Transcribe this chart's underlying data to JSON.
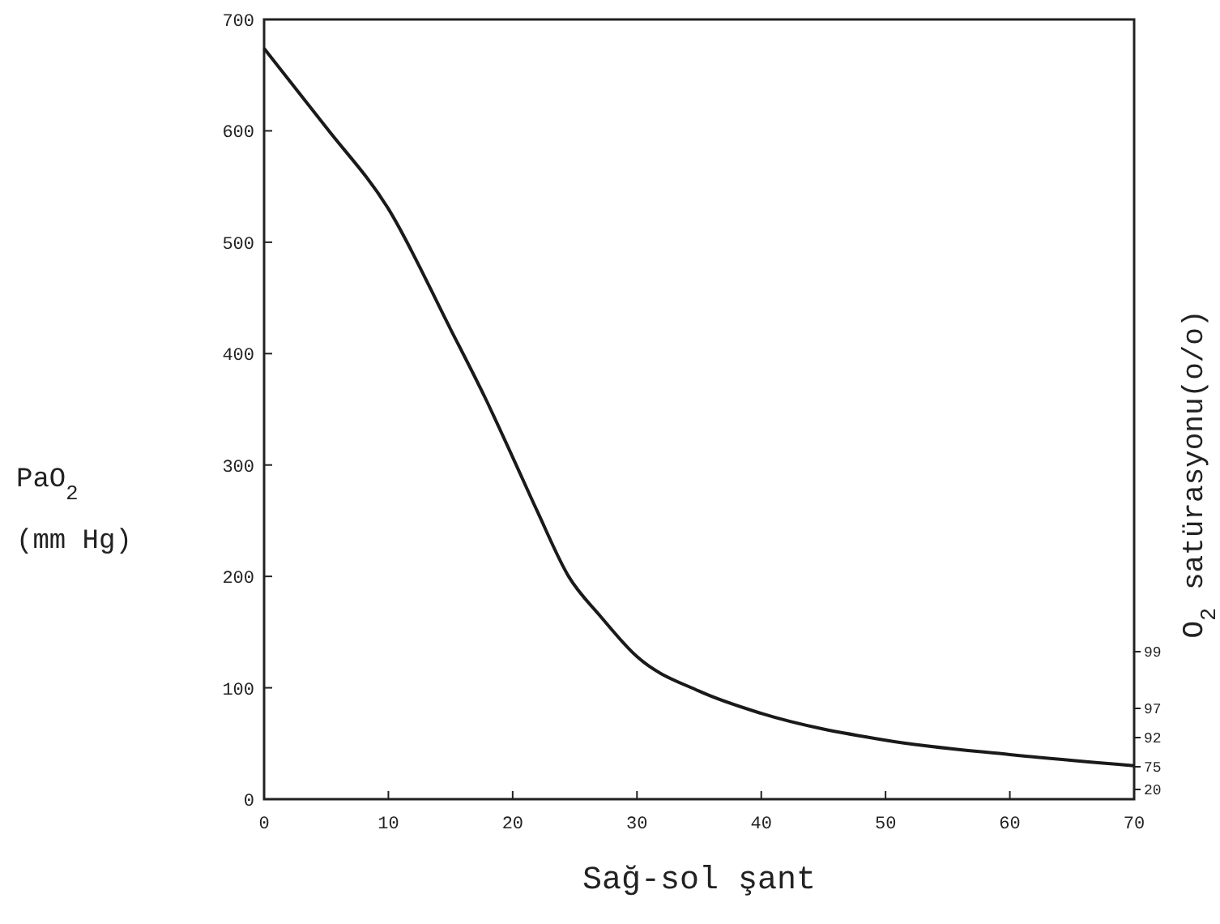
{
  "chart_data": {
    "type": "line",
    "xlabel": "Sağ-sol şant",
    "ylabel": "PaO$_{2}$ (mm Hg)",
    "y2label": "O$_{2}$ satürasyonu(o/o)",
    "x": [
      0,
      5,
      10,
      15,
      17.8,
      20,
      22,
      24.5,
      27,
      30,
      35,
      40,
      50,
      60,
      70
    ],
    "series": [
      {
        "color": "#1a1a1a",
        "values": [
          674,
          603,
          530,
          422,
          360,
          307,
          258,
          200,
          165,
          128,
          97,
          77,
          53,
          40,
          30
        ]
      }
    ],
    "xlim": [
      0,
      70
    ],
    "xticks": [
      0,
      10,
      20,
      30,
      40,
      50,
      60,
      70
    ],
    "ylim": [
      0,
      700
    ],
    "yticks": [
      0,
      100,
      200,
      300,
      400,
      500,
      600,
      700
    ],
    "annotations": [
      "99",
      "97",
      "92",
      "75",
      "20"
    ],
    "grid": false,
    "marker": "none",
    "line_style": "solid"
  }
}
